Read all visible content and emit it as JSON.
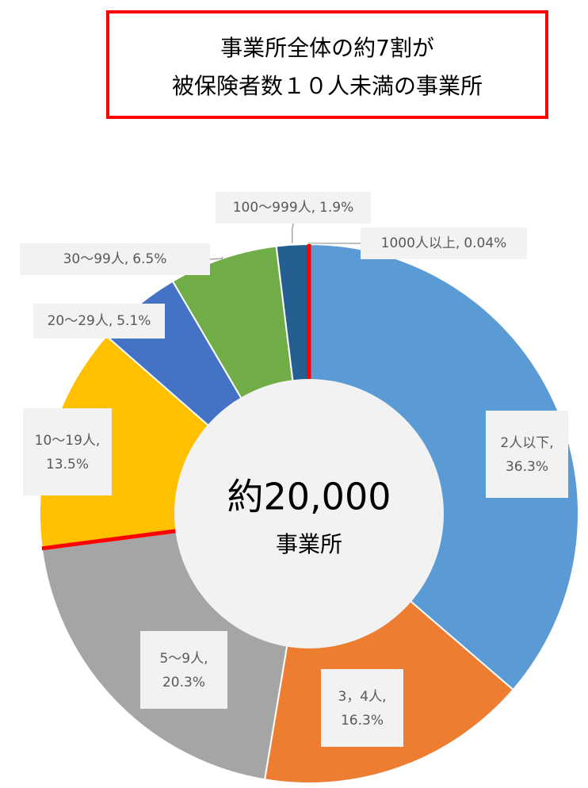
{
  "chart_data": {
    "type": "pie",
    "title": [
      "事業所全体の約7割が",
      "被保険者数１０人未満の事業所"
    ],
    "center_text": "約20,000",
    "center_subtext": "事業所",
    "label_separator": ",",
    "categories": [
      "2人以下",
      "3，4人",
      "5～9人",
      "10～19人",
      "20～29人",
      "30～99人",
      "100～999人",
      "1000人以上"
    ],
    "values": [
      36.3,
      16.3,
      20.3,
      13.5,
      5.1,
      6.5,
      1.9,
      0.04
    ],
    "value_labels": [
      "36.3%",
      "16.3%",
      "20.3%",
      "13.5%",
      "5.1%",
      "6.5%",
      "1.9%",
      "0.04%"
    ],
    "colors": [
      "#5b9bd5",
      "#ed7d31",
      "#a5a5a5",
      "#ffc000",
      "#4472c4",
      "#70ad47",
      "#255e91",
      "#9e480e"
    ]
  }
}
